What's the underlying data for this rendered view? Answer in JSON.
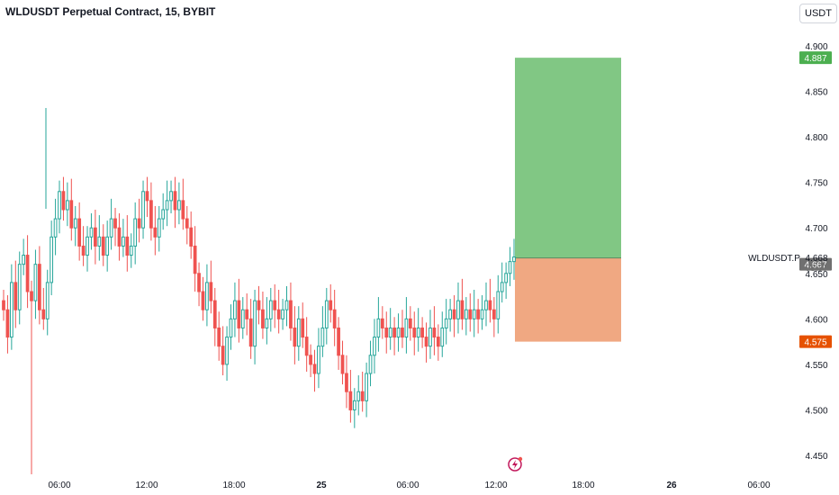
{
  "header": {
    "title": "WLDUSDT Perpetual Contract, 15, BYBIT",
    "currency_button": "USDT"
  },
  "symbol_label": "WLDUSDT.P",
  "last_price": "4.668",
  "countdown": "08:37",
  "colors": {
    "up": "#26a69a",
    "down": "#ef5350",
    "profit_zone": "#81c784",
    "loss_zone": "#f0a882",
    "target_badge": "#4caf50",
    "stop_badge": "#e65100",
    "current_badge": "#707070",
    "lightning": "#c2185b"
  },
  "icons": {
    "lightning": "lightning-icon"
  },
  "chart_data": {
    "type": "candlestick",
    "y_axis": {
      "ylim": [
        4.43,
        4.92
      ],
      "ticks": [
        "4.900",
        "4.850",
        "4.800",
        "4.750",
        "4.700",
        "4.650",
        "4.600",
        "4.550",
        "4.500",
        "4.450"
      ],
      "position": "right"
    },
    "x_axis": {
      "ticks": [
        "06:00",
        "12:00",
        "18:00",
        "25",
        "06:00",
        "12:00",
        "18:00",
        "26",
        "06:00"
      ]
    },
    "grid": false,
    "position_tool": {
      "type": "long",
      "entry": 4.667,
      "target": 4.887,
      "stop": 4.575,
      "labels": {
        "target": "4.887",
        "current": "4.667",
        "stop": "4.575"
      }
    },
    "closes": [
      4.61,
      4.58,
      4.64,
      4.61,
      4.66,
      4.67,
      4.63,
      4.62,
      4.66,
      4.61,
      4.6,
      4.64,
      4.69,
      4.71,
      4.74,
      4.72,
      4.73,
      4.7,
      4.71,
      4.68,
      4.67,
      4.69,
      4.7,
      4.68,
      4.69,
      4.67,
      4.69,
      4.71,
      4.7,
      4.68,
      4.69,
      4.67,
      4.68,
      4.71,
      4.7,
      4.74,
      4.73,
      4.7,
      4.69,
      4.71,
      4.72,
      4.73,
      4.74,
      4.72,
      4.73,
      4.71,
      4.7,
      4.68,
      4.65,
      4.63,
      4.61,
      4.64,
      4.62,
      4.59,
      4.57,
      4.55,
      4.58,
      4.6,
      4.62,
      4.59,
      4.61,
      4.6,
      4.57,
      4.62,
      4.61,
      4.59,
      4.6,
      4.62,
      4.61,
      4.6,
      4.61,
      4.62,
      4.59,
      4.57,
      4.6,
      4.58,
      4.56,
      4.55,
      4.54,
      4.57,
      4.59,
      4.62,
      4.61,
      4.59,
      4.56,
      4.54,
      4.52,
      4.5,
      4.51,
      4.52,
      4.51,
      4.54,
      4.56,
      4.58,
      4.6,
      4.59,
      4.58,
      4.59,
      4.58,
      4.59,
      4.58,
      4.6,
      4.59,
      4.58,
      4.59,
      4.58,
      4.57,
      4.59,
      4.58,
      4.57,
      4.59,
      4.6,
      4.61,
      4.6,
      4.62,
      4.6,
      4.61,
      4.6,
      4.61,
      4.6,
      4.61,
      4.62,
      4.61,
      4.6,
      4.63,
      4.64,
      4.65,
      4.663,
      4.668
    ]
  }
}
